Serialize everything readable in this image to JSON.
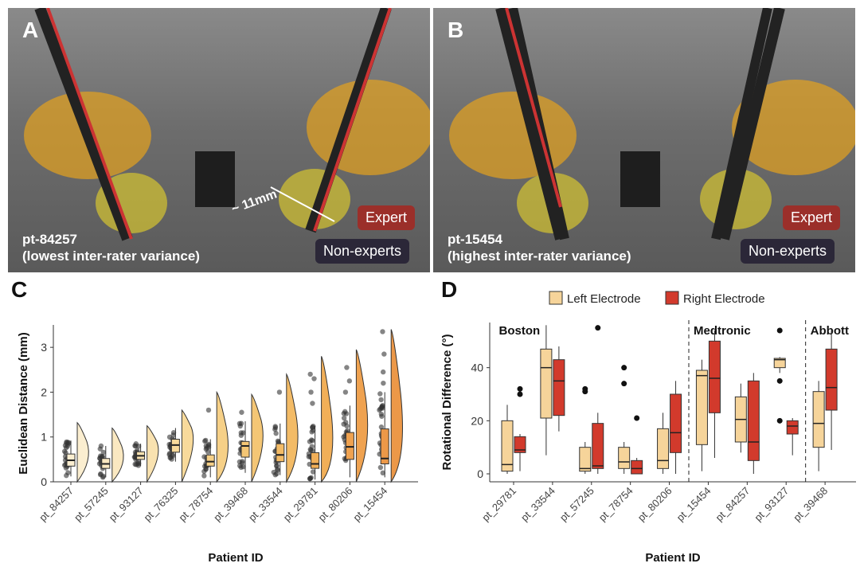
{
  "panels": {
    "A": {
      "letter": "A",
      "patient": "pt-84257",
      "note": "(lowest inter-rater variance)",
      "measure": "~ 11mm",
      "expert_label": "Expert",
      "nonexpert_label": "Non-experts"
    },
    "B": {
      "letter": "B",
      "patient": "pt-15454",
      "note": "(highest inter-rater variance)",
      "expert_label": "Expert",
      "nonexpert_label": "Non-experts"
    },
    "C": {
      "letter": "C"
    },
    "D": {
      "letter": "D"
    }
  },
  "colors": {
    "expert": "#9b2f2a",
    "nonexpert": "#2b2738",
    "left": "#f6d49a",
    "right": "#d23a2c"
  },
  "chart_data": [
    {
      "type": "boxplot+violin",
      "xlabel": "Patient ID",
      "ylabel": "Euclidean Distance (mm)",
      "ylim": [
        0,
        3.5
      ],
      "yticks": [
        0,
        1,
        2,
        3
      ],
      "categories": [
        "pt_84257",
        "pt_57245",
        "pt_93127",
        "pt_76325",
        "pt_78754",
        "pt_39468",
        "pt_33544",
        "pt_29781",
        "pt_80206",
        "pt_15454"
      ],
      "boxes": [
        {
          "q1": 0.35,
          "median": 0.48,
          "q3": 0.62,
          "lo": 0.12,
          "hi": 0.92
        },
        {
          "q1": 0.3,
          "median": 0.4,
          "q3": 0.52,
          "lo": 0.1,
          "hi": 0.8
        },
        {
          "q1": 0.5,
          "median": 0.58,
          "q3": 0.67,
          "lo": 0.35,
          "hi": 0.85
        },
        {
          "q1": 0.66,
          "median": 0.82,
          "q3": 0.95,
          "lo": 0.45,
          "hi": 1.2
        },
        {
          "q1": 0.35,
          "median": 0.45,
          "q3": 0.6,
          "lo": 0.1,
          "hi": 0.95
        },
        {
          "q1": 0.55,
          "median": 0.8,
          "q3": 0.9,
          "lo": 0.2,
          "hi": 1.35
        },
        {
          "q1": 0.45,
          "median": 0.6,
          "q3": 0.85,
          "lo": 0.15,
          "hi": 1.3
        },
        {
          "q1": 0.3,
          "median": 0.4,
          "q3": 0.65,
          "lo": 0.05,
          "hi": 1.25
        },
        {
          "q1": 0.5,
          "median": 0.78,
          "q3": 1.1,
          "lo": 0.1,
          "hi": 1.7
        },
        {
          "q1": 0.4,
          "median": 0.52,
          "q3": 1.18,
          "lo": 0.1,
          "hi": 2.0
        }
      ],
      "points_extra": [
        [],
        [],
        [],
        [],
        [
          1.6
        ],
        [
          1.55
        ],
        [
          2.0
        ],
        [
          1.75,
          2.0,
          2.3,
          2.4
        ],
        [
          2.0,
          2.25,
          2.55
        ],
        [
          2.2,
          2.45,
          2.85,
          3.35
        ]
      ]
    },
    {
      "type": "boxplot",
      "xlabel": "Patient ID",
      "ylabel": "Rotational Difference (°)",
      "ylim": [
        -3,
        57
      ],
      "yticks": [
        0,
        20,
        40
      ],
      "legend": [
        "Left Electrode",
        "Right Electrode"
      ],
      "groups": [
        {
          "name": "Boston",
          "start": 0,
          "end": 4
        },
        {
          "name": "Medtronic",
          "start": 5,
          "end": 7
        },
        {
          "name": "Abbott",
          "start": 8,
          "end": 8
        }
      ],
      "categories": [
        "pt_29781",
        "pt_33544",
        "pt_57245",
        "pt_78754",
        "pt_80206",
        "pt_15454",
        "pt_84257",
        "pt_93127",
        "pt_39468"
      ],
      "left": [
        {
          "q1": 1,
          "median": 3.5,
          "q3": 20,
          "lo": 0,
          "hi": 26,
          "out": []
        },
        {
          "q1": 21,
          "median": 40,
          "q3": 47,
          "lo": 7,
          "hi": 56,
          "out": []
        },
        {
          "q1": 1,
          "median": 2,
          "q3": 10,
          "lo": 0,
          "hi": 12,
          "out": [
            31,
            32
          ]
        },
        {
          "q1": 2,
          "median": 4.5,
          "q3": 10,
          "lo": 0,
          "hi": 12,
          "out": [
            34,
            40
          ]
        },
        {
          "q1": 2,
          "median": 5,
          "q3": 17,
          "lo": 0,
          "hi": 23,
          "out": []
        },
        {
          "q1": 11,
          "median": 37,
          "q3": 39,
          "lo": 1,
          "hi": 43,
          "out": []
        },
        {
          "q1": 12,
          "median": 20.5,
          "q3": 29,
          "lo": 8,
          "hi": 34,
          "out": []
        },
        {
          "q1": 40,
          "median": 43,
          "q3": 43.5,
          "lo": 38,
          "hi": 44,
          "out": [
            35,
            20,
            54
          ]
        },
        {
          "q1": 10,
          "median": 19,
          "q3": 31,
          "lo": 1,
          "hi": 35,
          "out": []
        }
      ],
      "right": [
        {
          "q1": 8,
          "median": 9,
          "q3": 14,
          "lo": 1,
          "hi": 15,
          "out": [
            30,
            32
          ]
        },
        {
          "q1": 22,
          "median": 35,
          "q3": 43,
          "lo": 16,
          "hi": 48,
          "out": []
        },
        {
          "q1": 2,
          "median": 3,
          "q3": 19,
          "lo": 0,
          "hi": 23,
          "out": [
            55
          ]
        },
        {
          "q1": 0,
          "median": 2,
          "q3": 5,
          "lo": 0,
          "hi": 6,
          "out": [
            21
          ]
        },
        {
          "q1": 8,
          "median": 15.5,
          "q3": 30,
          "lo": 0,
          "hi": 35,
          "out": []
        },
        {
          "q1": 23,
          "median": 36,
          "q3": 50,
          "lo": 6,
          "hi": 54,
          "out": []
        },
        {
          "q1": 5,
          "median": 12,
          "q3": 35,
          "lo": 0,
          "hi": 38,
          "out": []
        },
        {
          "q1": 15,
          "median": 18,
          "q3": 20,
          "lo": 7,
          "hi": 21,
          "out": []
        },
        {
          "q1": 24,
          "median": 32.5,
          "q3": 47,
          "lo": 9,
          "hi": 54,
          "out": []
        }
      ]
    }
  ]
}
